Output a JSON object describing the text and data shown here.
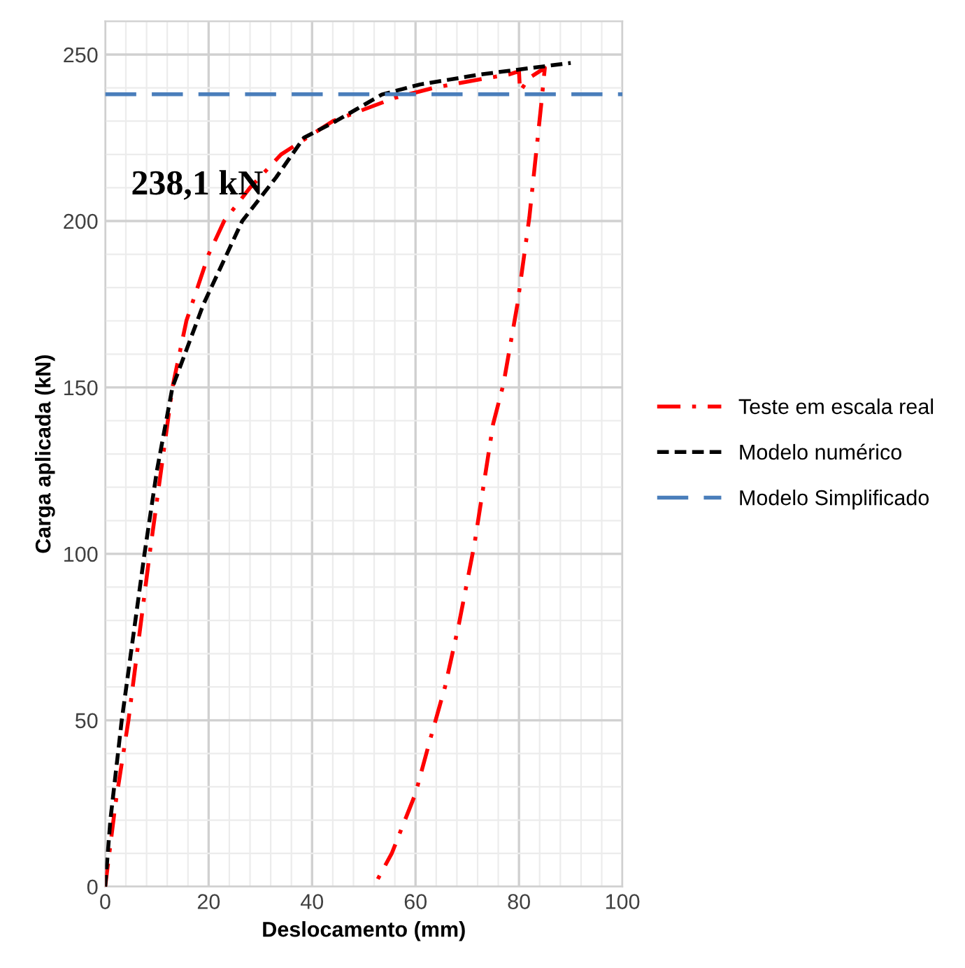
{
  "chart_data": {
    "type": "line",
    "xlabel": "Deslocamento (mm)",
    "ylabel": "Carga aplicada (kN)",
    "xlim": [
      0,
      100
    ],
    "xticks": [
      0,
      20,
      40,
      60,
      80,
      100
    ],
    "ylim": [
      0,
      260
    ],
    "yticks": [
      0,
      50,
      100,
      150,
      200,
      250
    ],
    "grid": true,
    "legend": "right",
    "marker": "none",
    "annotations": [
      "238,1 kN"
    ],
    "series": [
      {
        "name": "Teste em escala real",
        "color": "#ff0000",
        "line_style": "dashdot",
        "x": [
          0,
          2,
          4.5,
          8.6,
          13,
          15.7,
          20,
          23,
          28,
          34,
          44,
          56,
          63.5,
          74,
          78,
          80,
          80.2,
          82,
          85,
          84.3,
          82,
          79.7,
          77,
          75,
          71.4,
          68.4,
          65.7,
          62.7,
          60,
          55.4,
          51.9
        ],
        "values": [
          0,
          25,
          50,
          100,
          150,
          170,
          190,
          200,
          210,
          220,
          230,
          237,
          240,
          243,
          244,
          245,
          239,
          243,
          246,
          235,
          201,
          175,
          151,
          139,
          103,
          79,
          60,
          43.5,
          28,
          10,
          0
        ]
      },
      {
        "name": "Modelo numérico",
        "color": "#000000",
        "line_style": "dashed",
        "x": [
          0,
          1,
          3.2,
          7.6,
          10,
          13,
          19,
          26.5,
          33,
          38.4,
          44.6,
          53.5,
          60.8,
          72.4,
          90
        ],
        "values": [
          0,
          20,
          50,
          100,
          125,
          150,
          175,
          200,
          213,
          225,
          230,
          238,
          241,
          244,
          247.5
        ]
      },
      {
        "name": "Modelo Simplificado",
        "color": "#4a7ebb",
        "line_style": "longdash",
        "x": [
          0,
          100
        ],
        "values": [
          238.1,
          238.1
        ]
      }
    ]
  }
}
